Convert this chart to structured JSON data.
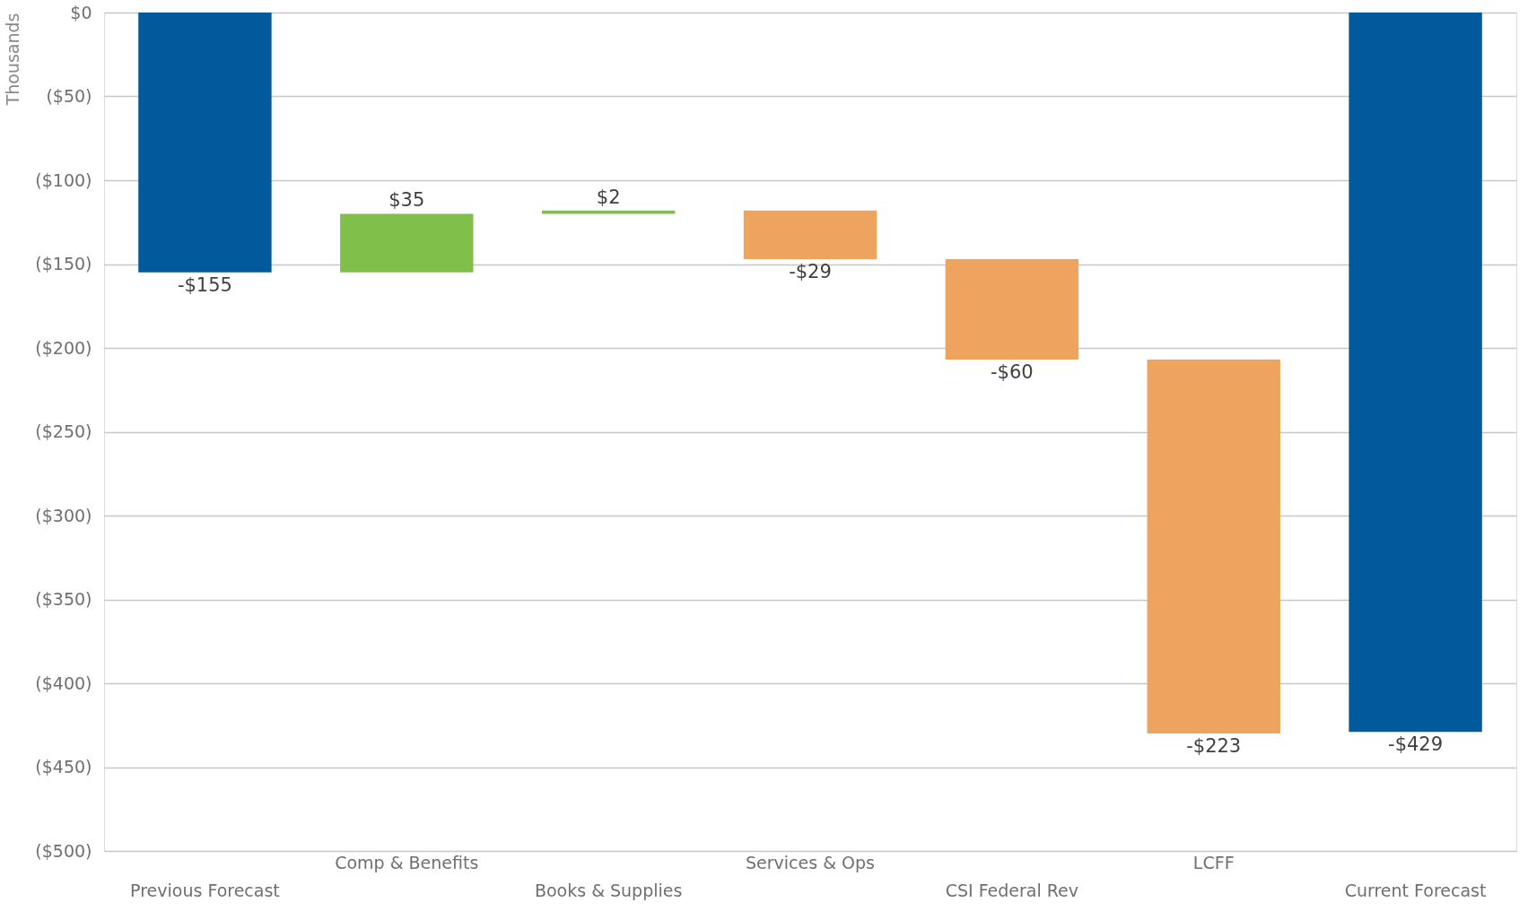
{
  "chart_data": {
    "type": "bar",
    "ylabel": "Thousands",
    "categories": [
      "Previous Forecast",
      "Comp & Benefits",
      "Books & Supplies",
      "Services & Ops",
      "CSI Federal Rev",
      "LCFF",
      "Current Forecast"
    ],
    "values": [
      -155,
      35,
      2,
      -29,
      -60,
      -223,
      -429
    ],
    "base": [
      0,
      -155,
      -120,
      -118,
      -147,
      -207,
      0
    ],
    "colors": [
      "#005a9c",
      "#7fbf4a",
      "#7fbf4a",
      "#eea35e",
      "#eea35e",
      "#eea35e",
      "#005a9c"
    ],
    "value_labels": [
      "-$155",
      "$35",
      "$2",
      "-$29",
      "-$60",
      "-$223",
      "-$429"
    ],
    "ylim": [
      -500,
      0
    ],
    "yticks": [
      {
        "value": 0,
        "label": "$0"
      },
      {
        "value": -50,
        "label": "($50)"
      },
      {
        "value": -100,
        "label": "($100)"
      },
      {
        "value": -150,
        "label": "($150)"
      },
      {
        "value": -200,
        "label": "($200)"
      },
      {
        "value": -250,
        "label": "($250)"
      },
      {
        "value": -300,
        "label": "($300)"
      },
      {
        "value": -350,
        "label": "($350)"
      },
      {
        "value": -400,
        "label": "($400)"
      },
      {
        "value": -450,
        "label": "($450)"
      },
      {
        "value": -500,
        "label": "($500)"
      }
    ],
    "grid": "y"
  }
}
